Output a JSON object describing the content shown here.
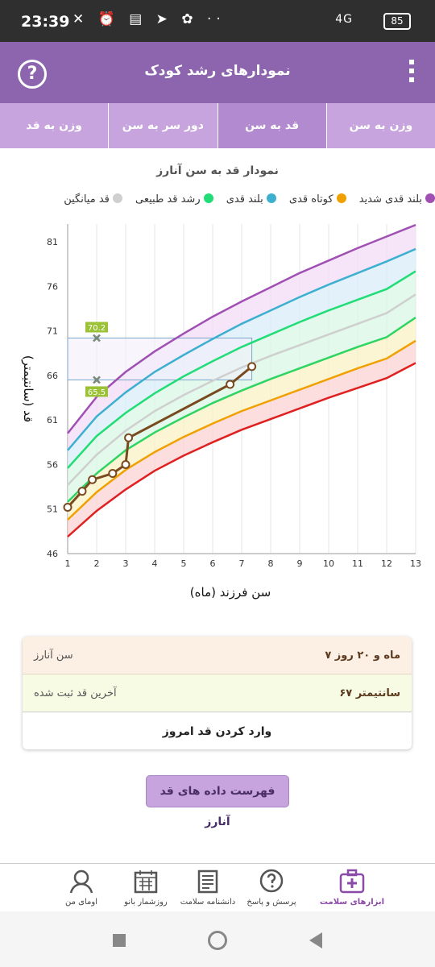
{
  "status_bar": {
    "time": "23:39",
    "network": "4G",
    "battery": "85"
  },
  "header": {
    "title": "نمودارهای رشد کودک"
  },
  "tabs": [
    {
      "label": "وزن به سن",
      "active": false
    },
    {
      "label": "قد به سن",
      "active": true
    },
    {
      "label": "دور سر به سن",
      "active": false
    },
    {
      "label": "وزن به قد",
      "active": false
    }
  ],
  "chart_title": "نمودار قد به سن آنارز",
  "legend": [
    {
      "label": "بلند قدی شدید",
      "color": "#a04fb3"
    },
    {
      "label": "کوتاه قدی",
      "color": "#f0a000"
    },
    {
      "label": "بلند قدی",
      "color": "#3db0d0"
    },
    {
      "label": "رشد قد طبیعی",
      "color": "#22dd77"
    },
    {
      "label": "قد میانگین",
      "color": "#cfcfcf"
    }
  ],
  "chart_data": {
    "type": "line",
    "xlabel": "سن فرزند (ماه)",
    "ylabel": "قد (سانتیمتر)",
    "xlim": [
      1,
      13
    ],
    "ylim": [
      46,
      83
    ],
    "xticks": [
      1,
      2,
      3,
      4,
      5,
      6,
      7,
      8,
      9,
      10,
      11,
      12,
      13
    ],
    "yticks": [
      46,
      51,
      56,
      61,
      66,
      71,
      76,
      81
    ],
    "grid": "vertical",
    "series": [
      {
        "name": "بلند قدی شدید",
        "color": "#a04fb3",
        "x": [
          1,
          2,
          3,
          4,
          5,
          6,
          7,
          8,
          9,
          10,
          11,
          12,
          13
        ],
        "y": [
          59.5,
          63.6,
          66.4,
          68.7,
          70.7,
          72.6,
          74.3,
          75.9,
          77.5,
          78.9,
          80.3,
          81.6,
          82.9
        ]
      },
      {
        "name": "بلند قدی",
        "color": "#3db0d0",
        "x": [
          1,
          2,
          3,
          4,
          5,
          6,
          7,
          8,
          9,
          10,
          11,
          12,
          13
        ],
        "y": [
          57.6,
          61.4,
          64.1,
          66.4,
          68.3,
          70.1,
          71.8,
          73.3,
          74.8,
          76.2,
          77.5,
          78.8,
          80.2
        ]
      },
      {
        "name": "رشد قد طبیعی",
        "color": "#22dd77",
        "x": [
          1,
          2,
          3,
          4,
          5,
          6,
          7,
          8,
          9,
          10,
          11,
          12,
          13
        ],
        "y": [
          55.6,
          59.2,
          61.8,
          64.0,
          65.9,
          67.6,
          69.2,
          70.6,
          72.0,
          73.3,
          74.5,
          75.7,
          77.7
        ]
      },
      {
        "name": "قد میانگین",
        "color": "#cfcfcf",
        "x": [
          1,
          2,
          3,
          4,
          5,
          6,
          7,
          8,
          9,
          10,
          11,
          12,
          13
        ],
        "y": [
          53.7,
          57.1,
          59.8,
          62.0,
          63.8,
          65.4,
          66.9,
          68.2,
          69.4,
          70.6,
          71.8,
          73.0,
          75.1
        ]
      },
      {
        "name": "",
        "color": "#2fd463",
        "x": [
          1,
          2,
          3,
          4,
          5,
          6,
          7,
          8,
          9,
          10,
          11,
          12,
          13
        ],
        "y": [
          51.8,
          55.0,
          57.6,
          59.6,
          61.3,
          62.9,
          64.3,
          65.6,
          66.8,
          68.0,
          69.2,
          70.3,
          72.5
        ]
      },
      {
        "name": "کوتاه قدی",
        "color": "#f0a000",
        "x": [
          1,
          2,
          3,
          4,
          5,
          6,
          7,
          8,
          9,
          10,
          11,
          12,
          13
        ],
        "y": [
          49.8,
          52.9,
          55.4,
          57.4,
          59.1,
          60.6,
          62.0,
          63.2,
          64.4,
          65.6,
          66.8,
          67.9,
          69.9
        ]
      },
      {
        "name": "",
        "color": "#e02020",
        "x": [
          1,
          2,
          3,
          4,
          5,
          6,
          7,
          8,
          9,
          10,
          11,
          12,
          13
        ],
        "y": [
          47.9,
          50.8,
          53.2,
          55.3,
          57.0,
          58.5,
          59.9,
          61.1,
          62.3,
          63.5,
          64.6,
          65.7,
          67.4
        ]
      },
      {
        "name": "",
        "color": "#7a4a1f",
        "x": [
          1.0,
          1.5,
          1.85,
          2.55,
          3.0,
          3.1,
          6.6,
          7.35
        ],
        "y": [
          51.2,
          53.0,
          54.3,
          55.0,
          56.0,
          59.0,
          65.0,
          67.0
        ]
      }
    ],
    "annotations": [
      {
        "label": "70.2",
        "x": 2.0,
        "y": 70.2
      },
      {
        "label": "65.5",
        "x": 2.0,
        "y": 65.5
      }
    ],
    "highlight_range": {
      "x": [
        1,
        7.35
      ],
      "y": [
        65.5,
        70.2
      ]
    }
  },
  "info_card": {
    "age_label": "سن آنارز",
    "age_value": "۷ ماه و ۲۰ روز",
    "last_height_label": "آخرین قد ثبت شده",
    "last_height_value": "۶۷ سانتیمتر",
    "enter_today": "وارد کردن قد امروز"
  },
  "list_button": "فهرست داده های قد آنارز",
  "bottom_nav": [
    {
      "label": "ابزارهای سلامت",
      "icon": "first-aid-kit-icon",
      "active": true
    },
    {
      "label": "پرسش و پاسخ",
      "icon": "question-bubble-icon",
      "active": false
    },
    {
      "label": "دانشنامه سلامت",
      "icon": "encyclopedia-icon",
      "active": false
    },
    {
      "label": "روزشمار بانو",
      "icon": "calendar-icon",
      "active": false
    },
    {
      "label": "اومای من",
      "icon": "profile-avatar-icon",
      "active": false
    }
  ]
}
